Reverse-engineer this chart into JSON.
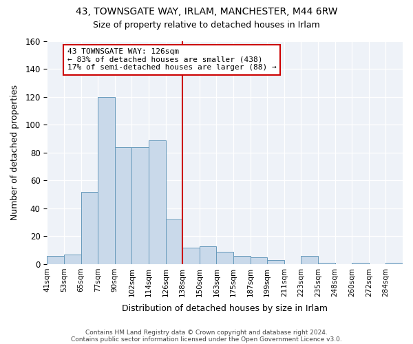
{
  "title1": "43, TOWNSGATE WAY, IRLAM, MANCHESTER, M44 6RW",
  "title2": "Size of property relative to detached houses in Irlam",
  "xlabel": "Distribution of detached houses by size in Irlam",
  "ylabel": "Number of detached properties",
  "bin_labels": [
    "41sqm",
    "53sqm",
    "65sqm",
    "77sqm",
    "90sqm",
    "102sqm",
    "114sqm",
    "126sqm",
    "138sqm",
    "150sqm",
    "163sqm",
    "175sqm",
    "187sqm",
    "199sqm",
    "211sqm",
    "223sqm",
    "235sqm",
    "248sqm",
    "260sqm",
    "272sqm",
    "284sqm"
  ],
  "bin_values": [
    6,
    7,
    52,
    120,
    84,
    84,
    89,
    32,
    12,
    13,
    9,
    6,
    5,
    3,
    0,
    6,
    1,
    0,
    1,
    0,
    1
  ],
  "bar_color": "#c9d9ea",
  "bar_edge_color": "#6699bb",
  "vline_x_index": 7,
  "vline_color": "#cc0000",
  "annotation_title": "43 TOWNSGATE WAY: 126sqm",
  "annotation_line1": "← 83% of detached houses are smaller (438)",
  "annotation_line2": "17% of semi-detached houses are larger (88) →",
  "annotation_box_color": "#cc0000",
  "ylim": [
    0,
    160
  ],
  "yticks": [
    0,
    20,
    40,
    60,
    80,
    100,
    120,
    140,
    160
  ],
  "footer1": "Contains HM Land Registry data © Crown copyright and database right 2024.",
  "footer2": "Contains public sector information licensed under the Open Government Licence v3.0.",
  "bg_color": "#ffffff",
  "plot_bg_color": "#eef2f8"
}
